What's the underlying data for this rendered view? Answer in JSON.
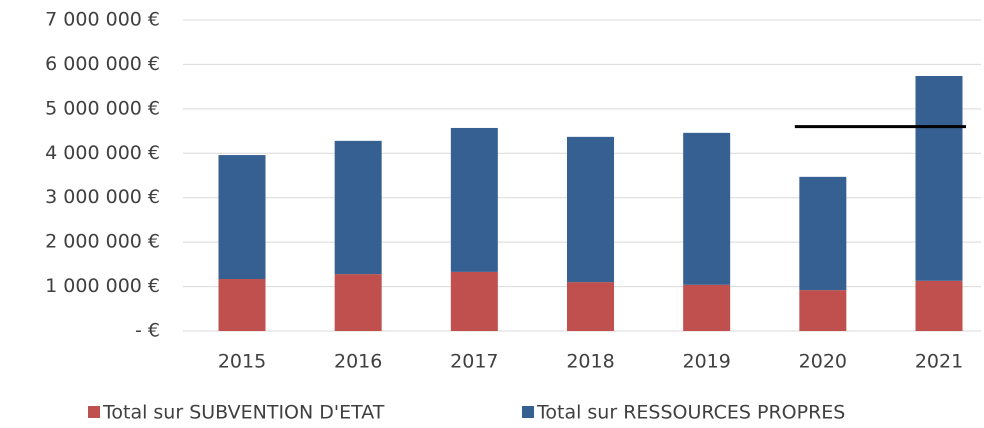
{
  "chart_data": {
    "type": "bar",
    "stacked": true,
    "categories": [
      "2015",
      "2016",
      "2017",
      "2018",
      "2019",
      "2020",
      "2021"
    ],
    "series": [
      {
        "name": "Total sur SUBVENTION D'ETAT",
        "color": "#c0504d",
        "values": [
          1170000,
          1280000,
          1330000,
          1100000,
          1040000,
          920000,
          1130000
        ]
      },
      {
        "name": "Total sur RESSOURCES PROPRES",
        "color": "#376092",
        "values": [
          2790000,
          3000000,
          3240000,
          3270000,
          3420000,
          2550000,
          4610000
        ]
      }
    ],
    "ylim": [
      0,
      7000000
    ],
    "yticks": [
      {
        "value": 0,
        "label": "-   €"
      },
      {
        "value": 1000000,
        "label": "1 000 000 €"
      },
      {
        "value": 2000000,
        "label": "2 000 000 €"
      },
      {
        "value": 3000000,
        "label": "3 000 000 €"
      },
      {
        "value": 4000000,
        "label": "4 000 000 €"
      },
      {
        "value": 5000000,
        "label": "5 000 000 €"
      },
      {
        "value": 6000000,
        "label": "6 000 000 €"
      },
      {
        "value": 7000000,
        "label": "7 000 000 €"
      }
    ],
    "grid": true,
    "legend": "bottom",
    "reference_line": {
      "value": 4600000,
      "start": "2020",
      "end": "2021",
      "color": "#000000"
    }
  }
}
